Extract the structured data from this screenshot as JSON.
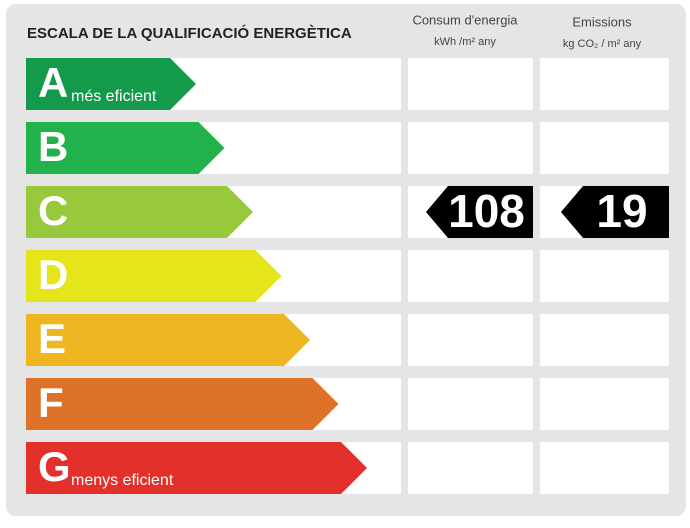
{
  "title": "ESCALA DE LA QUALIFICACIÓ ENERGÈTICA",
  "columns": [
    {
      "title": "Consum d'energia",
      "unit": "kWh /m² any"
    },
    {
      "title": "Emissions",
      "unit": "kg CO₂ / m² any"
    }
  ],
  "classes": [
    {
      "letter": "A",
      "label": "més eficient",
      "color": "#139a4a"
    },
    {
      "letter": "B",
      "label": null,
      "color": "#22b24b"
    },
    {
      "letter": "C",
      "label": null,
      "color": "#98c93c"
    },
    {
      "letter": "D",
      "label": null,
      "color": "#e6e51c"
    },
    {
      "letter": "E",
      "label": null,
      "color": "#eeb722"
    },
    {
      "letter": "F",
      "label": null,
      "color": "#df7229"
    },
    {
      "letter": "G",
      "label": "menys eficient",
      "color": "#e3302b"
    }
  ],
  "rating": {
    "class": "C",
    "values": [
      108,
      19
    ]
  }
}
